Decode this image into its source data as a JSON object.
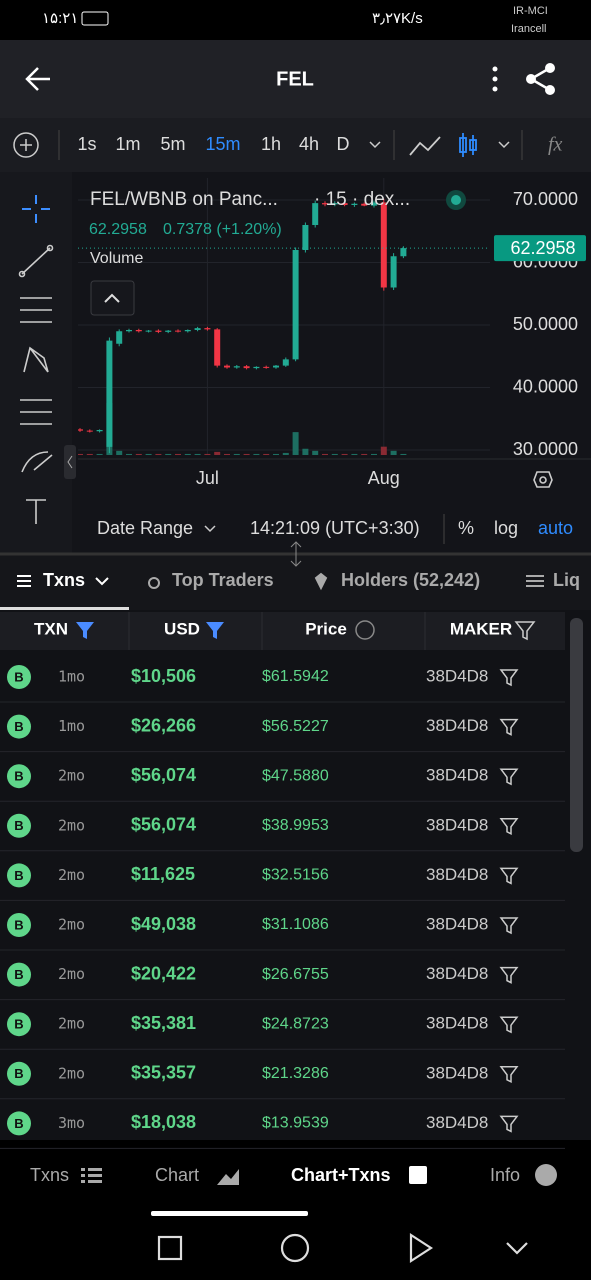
{
  "status_bar": {
    "time": "۱۵:۲۱",
    "speed": "۳٫۲۷K/s",
    "carrier": "IR-MCI",
    "operator": "Irancell"
  },
  "header": {
    "title": "FEL"
  },
  "toolbar": {
    "intervals": [
      "1s",
      "1m",
      "5m",
      "15m",
      "1h",
      "4h",
      "D"
    ],
    "active_index": 3
  },
  "chart": {
    "type": "candlestick",
    "title": "FEL/WBNB on Panc...",
    "meta": "· 15 · dex...",
    "change_label": "0.7378 (+1.20%)",
    "volume_label": "Volume",
    "last_price": 62.2958,
    "ylim": [
      29.2,
      73.52
    ],
    "yticks": [
      {
        "value": 70,
        "label": "70.0000"
      },
      {
        "value": 60,
        "label": "60.0000"
      },
      {
        "value": 50,
        "label": "50.0000"
      },
      {
        "value": 40,
        "label": "40.0000"
      },
      {
        "value": 30,
        "label": "30.0000"
      }
    ],
    "categories": [
      null,
      null,
      null,
      null,
      null,
      null,
      null,
      null,
      null,
      null,
      null,
      null,
      null,
      "Jul",
      null,
      null,
      null,
      null,
      null,
      null,
      null,
      null,
      null,
      null,
      null,
      null,
      null,
      null,
      null,
      null,
      null,
      "Aug",
      null,
      null
    ],
    "open": [
      33.3,
      33.1,
      33.0,
      30.5,
      47.0,
      49.0,
      49.2,
      49.0,
      49.1,
      48.9,
      49.1,
      49.0,
      49.2,
      49.5,
      49.3,
      43.5,
      43.2,
      43.4,
      43.1,
      43.3,
      43.2,
      43.5,
      44.5,
      62.0,
      66.0,
      69.5,
      69.3,
      69.5,
      69.2,
      69.4,
      69.1,
      69.6,
      56.0,
      61.0
    ],
    "high": [
      33.5,
      33.3,
      33.3,
      48.0,
      49.3,
      49.4,
      49.4,
      49.2,
      49.3,
      49.2,
      49.3,
      49.3,
      49.7,
      49.7,
      49.5,
      43.7,
      43.6,
      43.6,
      43.4,
      43.5,
      43.6,
      44.8,
      62.4,
      66.4,
      69.9,
      69.8,
      69.8,
      69.7,
      69.6,
      69.6,
      69.9,
      70.2,
      61.5,
      62.6
    ],
    "low": [
      32.9,
      32.8,
      32.8,
      29.5,
      46.6,
      48.8,
      48.8,
      48.8,
      48.7,
      48.7,
      48.8,
      48.8,
      49.0,
      49.1,
      43.2,
      43.0,
      43.0,
      42.9,
      42.9,
      43.0,
      43.0,
      43.3,
      44.2,
      61.6,
      65.6,
      69.0,
      69.0,
      69.0,
      68.9,
      69.0,
      68.8,
      55.5,
      55.6,
      60.7
    ],
    "close": [
      33.1,
      33.0,
      33.2,
      47.5,
      49.0,
      49.2,
      49.0,
      49.1,
      48.9,
      49.1,
      49.0,
      49.2,
      49.5,
      49.3,
      43.5,
      43.2,
      43.4,
      43.1,
      43.3,
      43.2,
      43.5,
      44.5,
      62.0,
      66.0,
      69.5,
      69.3,
      69.5,
      69.2,
      69.4,
      69.1,
      69.6,
      56.0,
      61.0,
      62.3
    ],
    "volume": [
      1,
      1,
      1,
      50,
      4,
      1,
      1,
      1,
      1,
      1,
      1,
      1,
      1,
      1,
      3,
      1,
      1,
      1,
      1,
      1,
      1,
      2,
      22,
      6,
      4,
      1,
      1,
      1,
      1,
      1,
      1,
      8,
      4,
      1
    ],
    "date_range": "Date Range",
    "time": "14:21:09 (UTC+3:30)",
    "percent": "%",
    "log": "log",
    "auto": "auto"
  },
  "tabs": {
    "items": [
      "Txns",
      "Top Traders",
      "Holders (52,242)",
      "Liq"
    ],
    "active_index": 0
  },
  "table": {
    "columns": [
      "TXN",
      "USD",
      "Price",
      "MAKER"
    ],
    "rows": [
      [
        "B",
        "1mo",
        "$10,506",
        "$61.5942",
        "38D4D8"
      ],
      [
        "B",
        "1mo",
        "$26,266",
        "$56.5227",
        "38D4D8"
      ],
      [
        "B",
        "2mo",
        "$56,074",
        "$47.5880",
        "38D4D8"
      ],
      [
        "B",
        "2mo",
        "$56,074",
        "$38.9953",
        "38D4D8"
      ],
      [
        "B",
        "2mo",
        "$11,625",
        "$32.5156",
        "38D4D8"
      ],
      [
        "B",
        "2mo",
        "$49,038",
        "$31.1086",
        "38D4D8"
      ],
      [
        "B",
        "2mo",
        "$20,422",
        "$26.6755",
        "38D4D8"
      ],
      [
        "B",
        "2mo",
        "$35,381",
        "$24.8723",
        "38D4D8"
      ],
      [
        "B",
        "2mo",
        "$35,357",
        "$21.3286",
        "38D4D8"
      ],
      [
        "B",
        "3mo",
        "$18,038",
        "$13.9539",
        "38D4D8"
      ]
    ]
  },
  "bottom_nav": {
    "items": [
      "Txns",
      "Chart",
      "Chart+Txns",
      "Info"
    ],
    "active_index": 2
  }
}
